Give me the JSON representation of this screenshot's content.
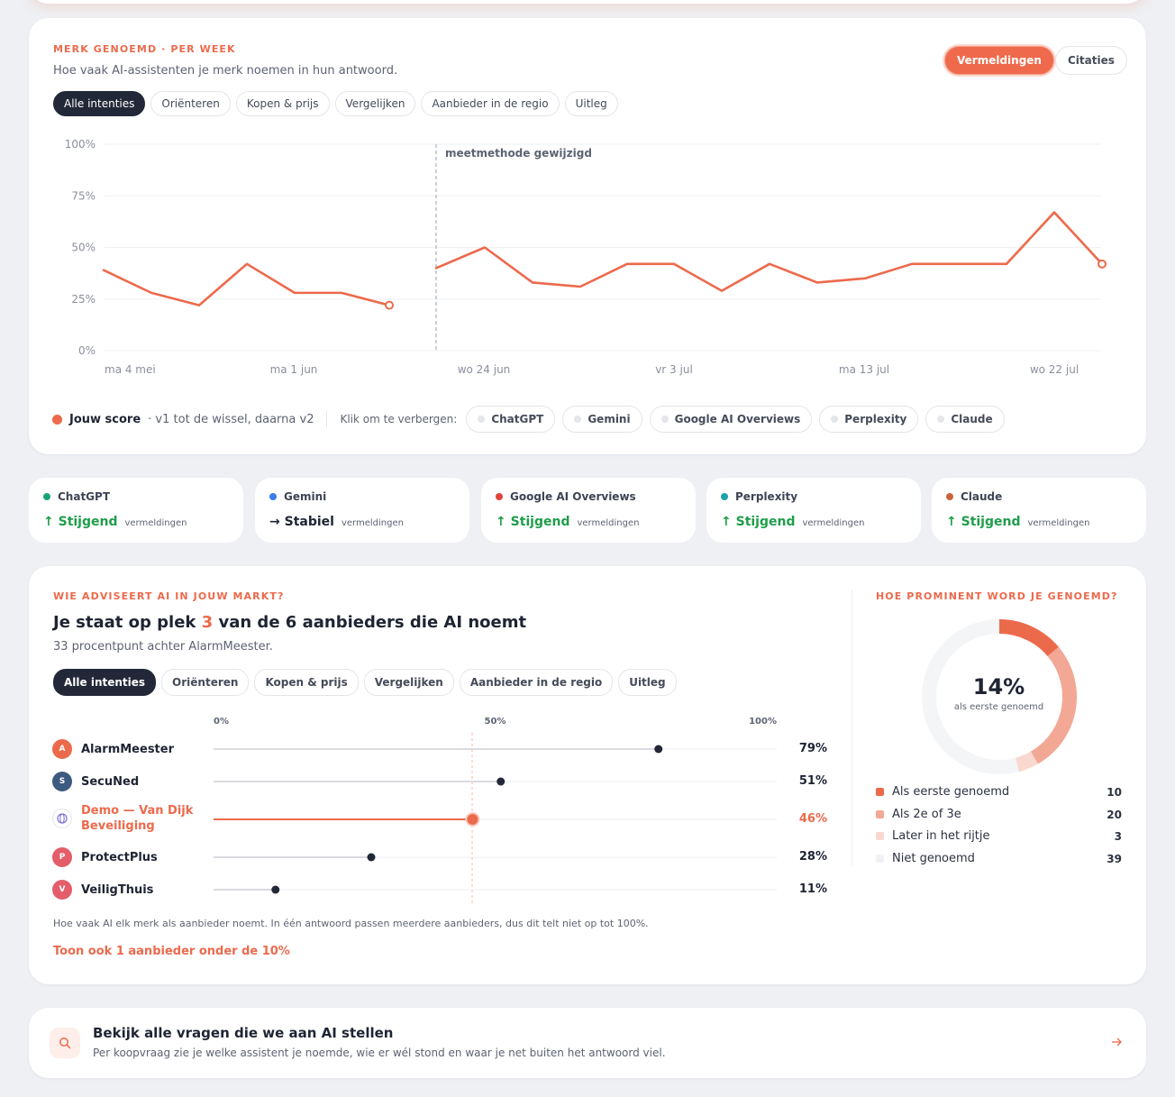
{
  "trend_card": {
    "eyebrow": "MERK GENOEMD · PER WEEK",
    "subtitle": "Hoe vaak AI-assistenten je merk noemen in hun antwoord.",
    "toggle": [
      "Vermeldingen",
      "Citaties"
    ],
    "toggle_active": "Vermeldingen",
    "filters": [
      "Alle intenties",
      "Oriënteren",
      "Kopen & prijs",
      "Vergelijken",
      "Aanbieder in de regio",
      "Uitleg"
    ],
    "filter_active": "Alle intenties",
    "legend_score": "Jouw score",
    "legend_note": "· v1 tot de wissel, daarna v2",
    "hide_prompt": "Klik om te verbergen:",
    "assistant_pills": [
      "ChatGPT",
      "Gemini",
      "Google AI Overviews",
      "Perplexity",
      "Claude"
    ]
  },
  "chart_data": {
    "type": "line",
    "title": "",
    "xlabel": "",
    "ylabel": "",
    "ylim": [
      0,
      100
    ],
    "yticks": [
      "100%",
      "75%",
      "50%",
      "25%",
      "0%"
    ],
    "xticks": [
      "ma 4 mei",
      "ma 1 jun",
      "wo 24 jun",
      "vr 3 jul",
      "ma 13 jul",
      "wo 22 jul"
    ],
    "annotation": "meetmethode gewijzigd",
    "color": "#ec6a4c",
    "series": [
      {
        "values": [
          39,
          28,
          22,
          42,
          28,
          28,
          22
        ]
      },
      {
        "values": [
          40,
          50,
          33,
          31,
          42,
          42,
          29,
          42,
          33,
          35,
          42,
          42,
          42,
          67,
          42
        ]
      }
    ]
  },
  "tiles": [
    {
      "name": "ChatGPT",
      "color": "#1aa37a",
      "trend": "↑ Stijgend",
      "trend_color": "#1f9d4a",
      "sub": "vermeldingen"
    },
    {
      "name": "Gemini",
      "color": "#3b7de9",
      "trend": "→ Stabiel",
      "trend_color": "#1f2433",
      "sub": "vermeldingen"
    },
    {
      "name": "Google AI Overviews",
      "color": "#e0443a",
      "trend": "↑ Stijgend",
      "trend_color": "#1f9d4a",
      "sub": "vermeldingen"
    },
    {
      "name": "Perplexity",
      "color": "#1ba3a8",
      "trend": "↑ Stijgend",
      "trend_color": "#1f9d4a",
      "sub": "vermeldingen"
    },
    {
      "name": "Claude",
      "color": "#c8643d",
      "trend": "↑ Stijgend",
      "trend_color": "#1f9d4a",
      "sub": "vermeldingen"
    }
  ],
  "market_card": {
    "eyebrow": "WIE ADVISEERT AI IN JOUW MARKT?",
    "headline_pre": "Je staat op plek ",
    "headline_rank": "3",
    "headline_post": " van de 6 aanbieders die AI noemt",
    "subline": "33 procentpunt achter AlarmMeester.",
    "filters": [
      "Alle intenties",
      "Oriënteren",
      "Kopen & prijs",
      "Vergelijken",
      "Aanbieder in de regio",
      "Uitleg"
    ],
    "filter_active": "Alle intenties",
    "scale": [
      "0%",
      "50%",
      "100%"
    ],
    "brands": [
      {
        "initial": "A",
        "name": "AlarmMeester",
        "value": 79,
        "label": "79%",
        "color": "#ec6a4c",
        "me": false
      },
      {
        "initial": "S",
        "name": "SecuNed",
        "value": 51,
        "label": "51%",
        "color": "#3d5a80",
        "me": false
      },
      {
        "initial": "",
        "name": "Demo — Van Dijk Beveiliging",
        "value": 46,
        "label": "46%",
        "color": "#7a6fd6",
        "me": true
      },
      {
        "initial": "P",
        "name": "ProtectPlus",
        "value": 28,
        "label": "28%",
        "color": "#e35d6a",
        "me": false
      },
      {
        "initial": "V",
        "name": "VeiligThuis",
        "value": 11,
        "label": "11%",
        "color": "#e35d6a",
        "me": false
      }
    ],
    "footnote": "Hoe vaak AI elk merk als aanbieder noemt. In één antwoord passen meerdere aanbieders, dus dit telt niet op tot 100%.",
    "show_more": "Toon ook 1 aanbieder onder de 10%"
  },
  "prominence": {
    "eyebrow": "HOE PROMINENT WORD JE GENOEMD?",
    "center_value": "14%",
    "center_label": "als eerste genoemd",
    "segments": [
      {
        "label": "Als eerste genoemd",
        "value": 10,
        "color": "#ec6a4c"
      },
      {
        "label": "Als 2e of 3e",
        "value": 20,
        "color": "#f2a894"
      },
      {
        "label": "Later in het rijtje",
        "value": 3,
        "color": "#f8d8cf"
      },
      {
        "label": "Niet genoemd",
        "value": 39,
        "color": "#f3f4f6"
      }
    ]
  },
  "questions_card": {
    "title": "Bekijk alle vragen die we aan AI stellen",
    "subtitle": "Per koopvraag zie je welke assistent je noemde, wie er wél stond en waar je net buiten het antwoord viel."
  }
}
